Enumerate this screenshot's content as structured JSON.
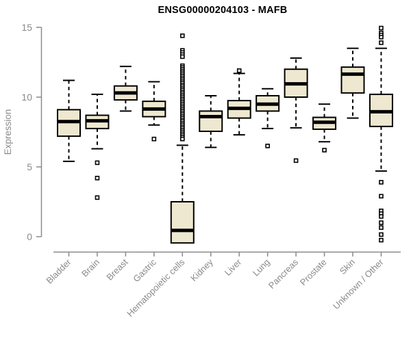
{
  "chart_data": {
    "type": "boxplot",
    "title": "ENSG00000204103 - MAFB",
    "ylabel": "Expression",
    "xlabel": "",
    "yticks": [
      0,
      5,
      10,
      15
    ],
    "ylim": [
      -0.6,
      15.1
    ],
    "grid": "off",
    "legend": "none",
    "x_label_rotation": 45,
    "colors": {
      "box_fill": "#EEE8D0",
      "box_border": "#000000",
      "median": "#000000",
      "whisker": "#000000",
      "outlier_stroke": "#000000",
      "outlier_fill": "#FFFFFF",
      "axis": "#8A8A8A",
      "title": "#000000",
      "background": "#FFFFFF"
    },
    "categories": [
      "Bladder",
      "Brain",
      "Breast",
      "Gastric",
      "Hematopoietic cells",
      "Kidney",
      "Liver",
      "Lung",
      "Pancreas",
      "Prostate",
      "Skin",
      "Unknown / Other"
    ],
    "boxes": [
      {
        "category": "Bladder",
        "whisker_low": 5.4,
        "q1": 7.2,
        "median": 8.25,
        "q3": 9.1,
        "whisker_high": 11.2,
        "outliers": []
      },
      {
        "category": "Brain",
        "whisker_low": 6.3,
        "q1": 7.75,
        "median": 8.3,
        "q3": 8.7,
        "whisker_high": 10.2,
        "outliers": [
          5.3,
          4.2,
          2.8
        ]
      },
      {
        "category": "Breast",
        "whisker_low": 9.0,
        "q1": 9.8,
        "median": 10.3,
        "q3": 10.8,
        "whisker_high": 12.2,
        "outliers": []
      },
      {
        "category": "Gastric",
        "whisker_low": 8.0,
        "q1": 8.6,
        "median": 9.15,
        "q3": 9.7,
        "whisker_high": 11.1,
        "outliers": [
          7.0
        ]
      },
      {
        "category": "Hematopoietic cells",
        "whisker_low": -0.45,
        "q1": -0.45,
        "median": 0.45,
        "q3": 2.5,
        "whisker_high": 6.55,
        "outliers": [
          14.4,
          13.35,
          13.2,
          13.05,
          12.9,
          12.25,
          12.12,
          12.0,
          11.87,
          11.75,
          11.62,
          11.5,
          11.37,
          11.25,
          11.12,
          11.0,
          10.87,
          10.75,
          10.62,
          10.5,
          10.37,
          10.25,
          10.12,
          10.0,
          9.87,
          9.75,
          9.62,
          9.5,
          9.37,
          9.25,
          9.12,
          9.0,
          8.87,
          8.75,
          8.62,
          8.5,
          8.37,
          8.25,
          8.12,
          8.0,
          7.87,
          7.75,
          7.62,
          7.5,
          7.37,
          7.25,
          7.12,
          7.0
        ]
      },
      {
        "category": "Kidney",
        "whisker_low": 6.4,
        "q1": 7.55,
        "median": 8.6,
        "q3": 9.0,
        "whisker_high": 10.1,
        "outliers": []
      },
      {
        "category": "Liver",
        "whisker_low": 7.3,
        "q1": 8.5,
        "median": 9.2,
        "q3": 9.75,
        "whisker_high": 11.7,
        "outliers": [
          11.9
        ]
      },
      {
        "category": "Lung",
        "whisker_low": 7.75,
        "q1": 9.0,
        "median": 9.5,
        "q3": 10.1,
        "whisker_high": 10.6,
        "outliers": [
          6.5
        ]
      },
      {
        "category": "Pancreas",
        "whisker_low": 7.8,
        "q1": 10.0,
        "median": 10.95,
        "q3": 12.0,
        "whisker_high": 12.8,
        "outliers": [
          5.45
        ]
      },
      {
        "category": "Prostate",
        "whisker_low": 6.8,
        "q1": 7.7,
        "median": 8.2,
        "q3": 8.55,
        "whisker_high": 9.5,
        "outliers": [
          6.2
        ]
      },
      {
        "category": "Skin",
        "whisker_low": 8.5,
        "q1": 10.3,
        "median": 11.65,
        "q3": 12.15,
        "whisker_high": 13.5,
        "outliers": []
      },
      {
        "category": "Unknown / Other",
        "whisker_low": 4.7,
        "q1": 7.9,
        "median": 8.95,
        "q3": 10.2,
        "whisker_high": 13.5,
        "outliers": [
          14.95,
          14.6,
          14.45,
          14.3,
          13.9,
          3.9,
          2.9,
          1.85,
          1.65,
          1.45,
          1.0,
          0.65,
          0.15,
          -0.25
        ]
      }
    ]
  }
}
